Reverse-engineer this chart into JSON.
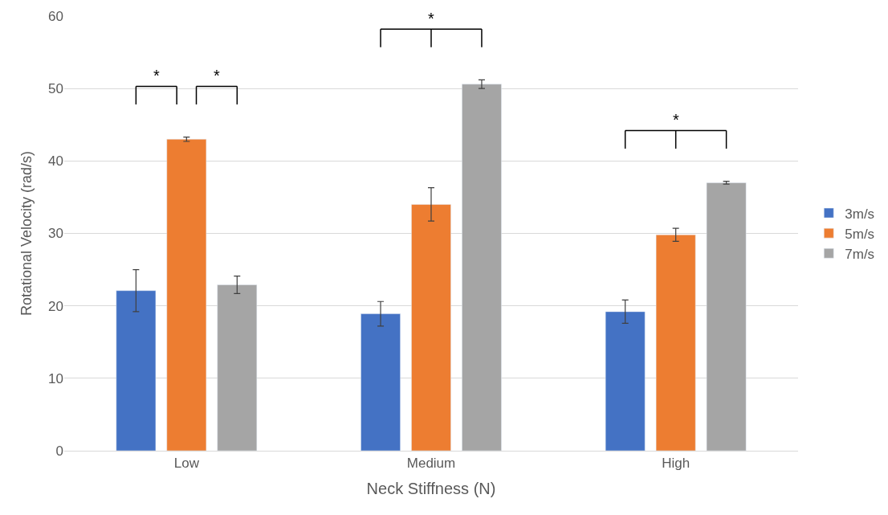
{
  "chart_data": {
    "type": "bar",
    "categories": [
      "Low",
      "Medium",
      "High"
    ],
    "series": [
      {
        "name": "3m/s",
        "color": "#4472c4",
        "values": [
          22.1,
          18.9,
          19.2
        ],
        "errors": [
          2.9,
          1.7,
          1.6
        ]
      },
      {
        "name": "5m/s",
        "color": "#ed7d31",
        "values": [
          43.0,
          34.0,
          29.8
        ],
        "errors": [
          0.3,
          2.3,
          0.9
        ]
      },
      {
        "name": "7m/s",
        "color": "#a5a5a5",
        "values": [
          22.9,
          50.6,
          37.0
        ],
        "errors": [
          1.2,
          0.6,
          0.2
        ]
      }
    ],
    "xlabel": "Neck Stiffness (N)",
    "ylabel": "Rotational Velocity (rad/s)",
    "ylim": [
      0,
      60
    ],
    "yticks": [
      0,
      10,
      20,
      30,
      40,
      50,
      60
    ],
    "grid": "y",
    "legend": "right",
    "annotations": [
      "*",
      "*",
      "*",
      "*"
    ]
  }
}
